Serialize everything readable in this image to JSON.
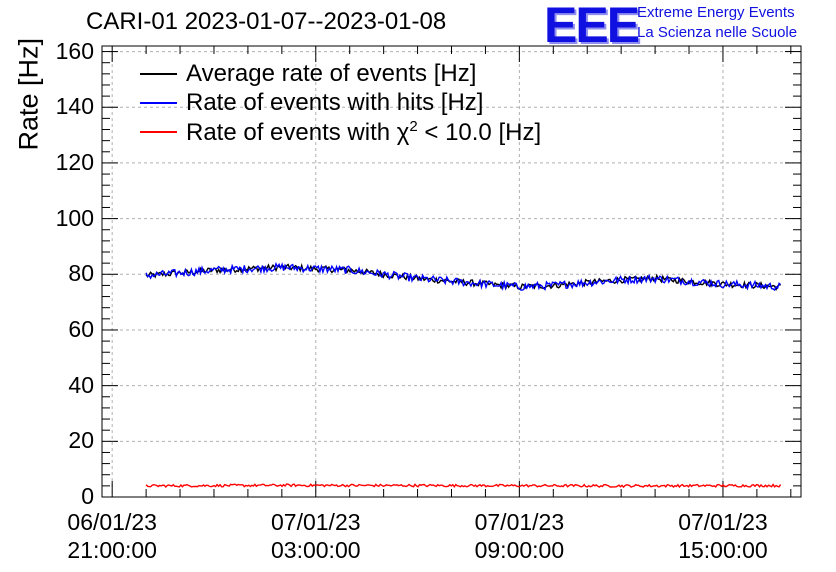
{
  "chart_data": {
    "type": "line",
    "title": "CARI-01 2023-01-07--2023-01-08",
    "ylabel": "Rate [Hz]",
    "xlabel": "",
    "ylim": [
      0,
      162
    ],
    "xlim_hours_from_first_tick": [
      -0.3,
      20.3
    ],
    "yticks": [
      "0",
      "20",
      "40",
      "60",
      "80",
      "100",
      "120",
      "140",
      "160"
    ],
    "xticks": [
      {
        "hour": 0,
        "date": "06/01/23",
        "time": "21:00:00"
      },
      {
        "hour": 6,
        "date": "07/01/23",
        "time": "03:00:00"
      },
      {
        "hour": 12,
        "date": "07/01/23",
        "time": "09:00:00"
      },
      {
        "hour": 18,
        "date": "07/01/23",
        "time": "15:00:00"
      }
    ],
    "grid": true,
    "legend_position": "top-left",
    "series": [
      {
        "name": "Average rate of events [Hz]",
        "color": "#000000",
        "hours": [
          1.0,
          2.0,
          3.0,
          4.0,
          5.0,
          6.0,
          7.0,
          8.0,
          9.0,
          10.0,
          11.0,
          12.0,
          13.0,
          14.0,
          15.0,
          16.0,
          17.0,
          18.0,
          19.0,
          19.7
        ],
        "values": [
          79.5,
          80.5,
          81.5,
          82.0,
          82.5,
          82.0,
          81.5,
          80.0,
          78.5,
          77.5,
          76.5,
          75.5,
          76.0,
          77.0,
          78.0,
          78.5,
          77.5,
          76.5,
          76.0,
          75.5
        ]
      },
      {
        "name": "Rate of events with hits [Hz]",
        "color": "#0000ff",
        "hours": [
          1.0,
          2.0,
          3.0,
          4.0,
          5.0,
          6.0,
          7.0,
          8.0,
          9.0,
          10.0,
          11.0,
          12.0,
          13.0,
          14.0,
          15.0,
          16.0,
          17.0,
          18.0,
          19.0,
          19.7
        ],
        "values": [
          79.5,
          80.5,
          81.5,
          82.0,
          82.5,
          82.0,
          81.5,
          80.0,
          78.5,
          77.5,
          76.5,
          75.5,
          76.0,
          77.0,
          78.0,
          78.5,
          77.5,
          76.5,
          76.0,
          75.5
        ]
      },
      {
        "name": "Rate of events with χ² < 10.0 [Hz]",
        "color": "#ff0000",
        "hours": [
          1.0,
          5.0,
          10.0,
          15.0,
          19.7
        ],
        "values": [
          4.0,
          4.2,
          4.1,
          4.0,
          4.1
        ]
      }
    ]
  },
  "logo": {
    "mark": "EEE",
    "line1": "Extreme Energy Events",
    "line2": "La Scienza nelle Scuole"
  },
  "legend": {
    "avg": "Average rate of events [Hz]",
    "hits": "Rate of events with hits [Hz]",
    "chi_prefix": "Rate of events with χ",
    "chi_sup": "2",
    "chi_suffix": " < 10.0 [Hz]"
  }
}
